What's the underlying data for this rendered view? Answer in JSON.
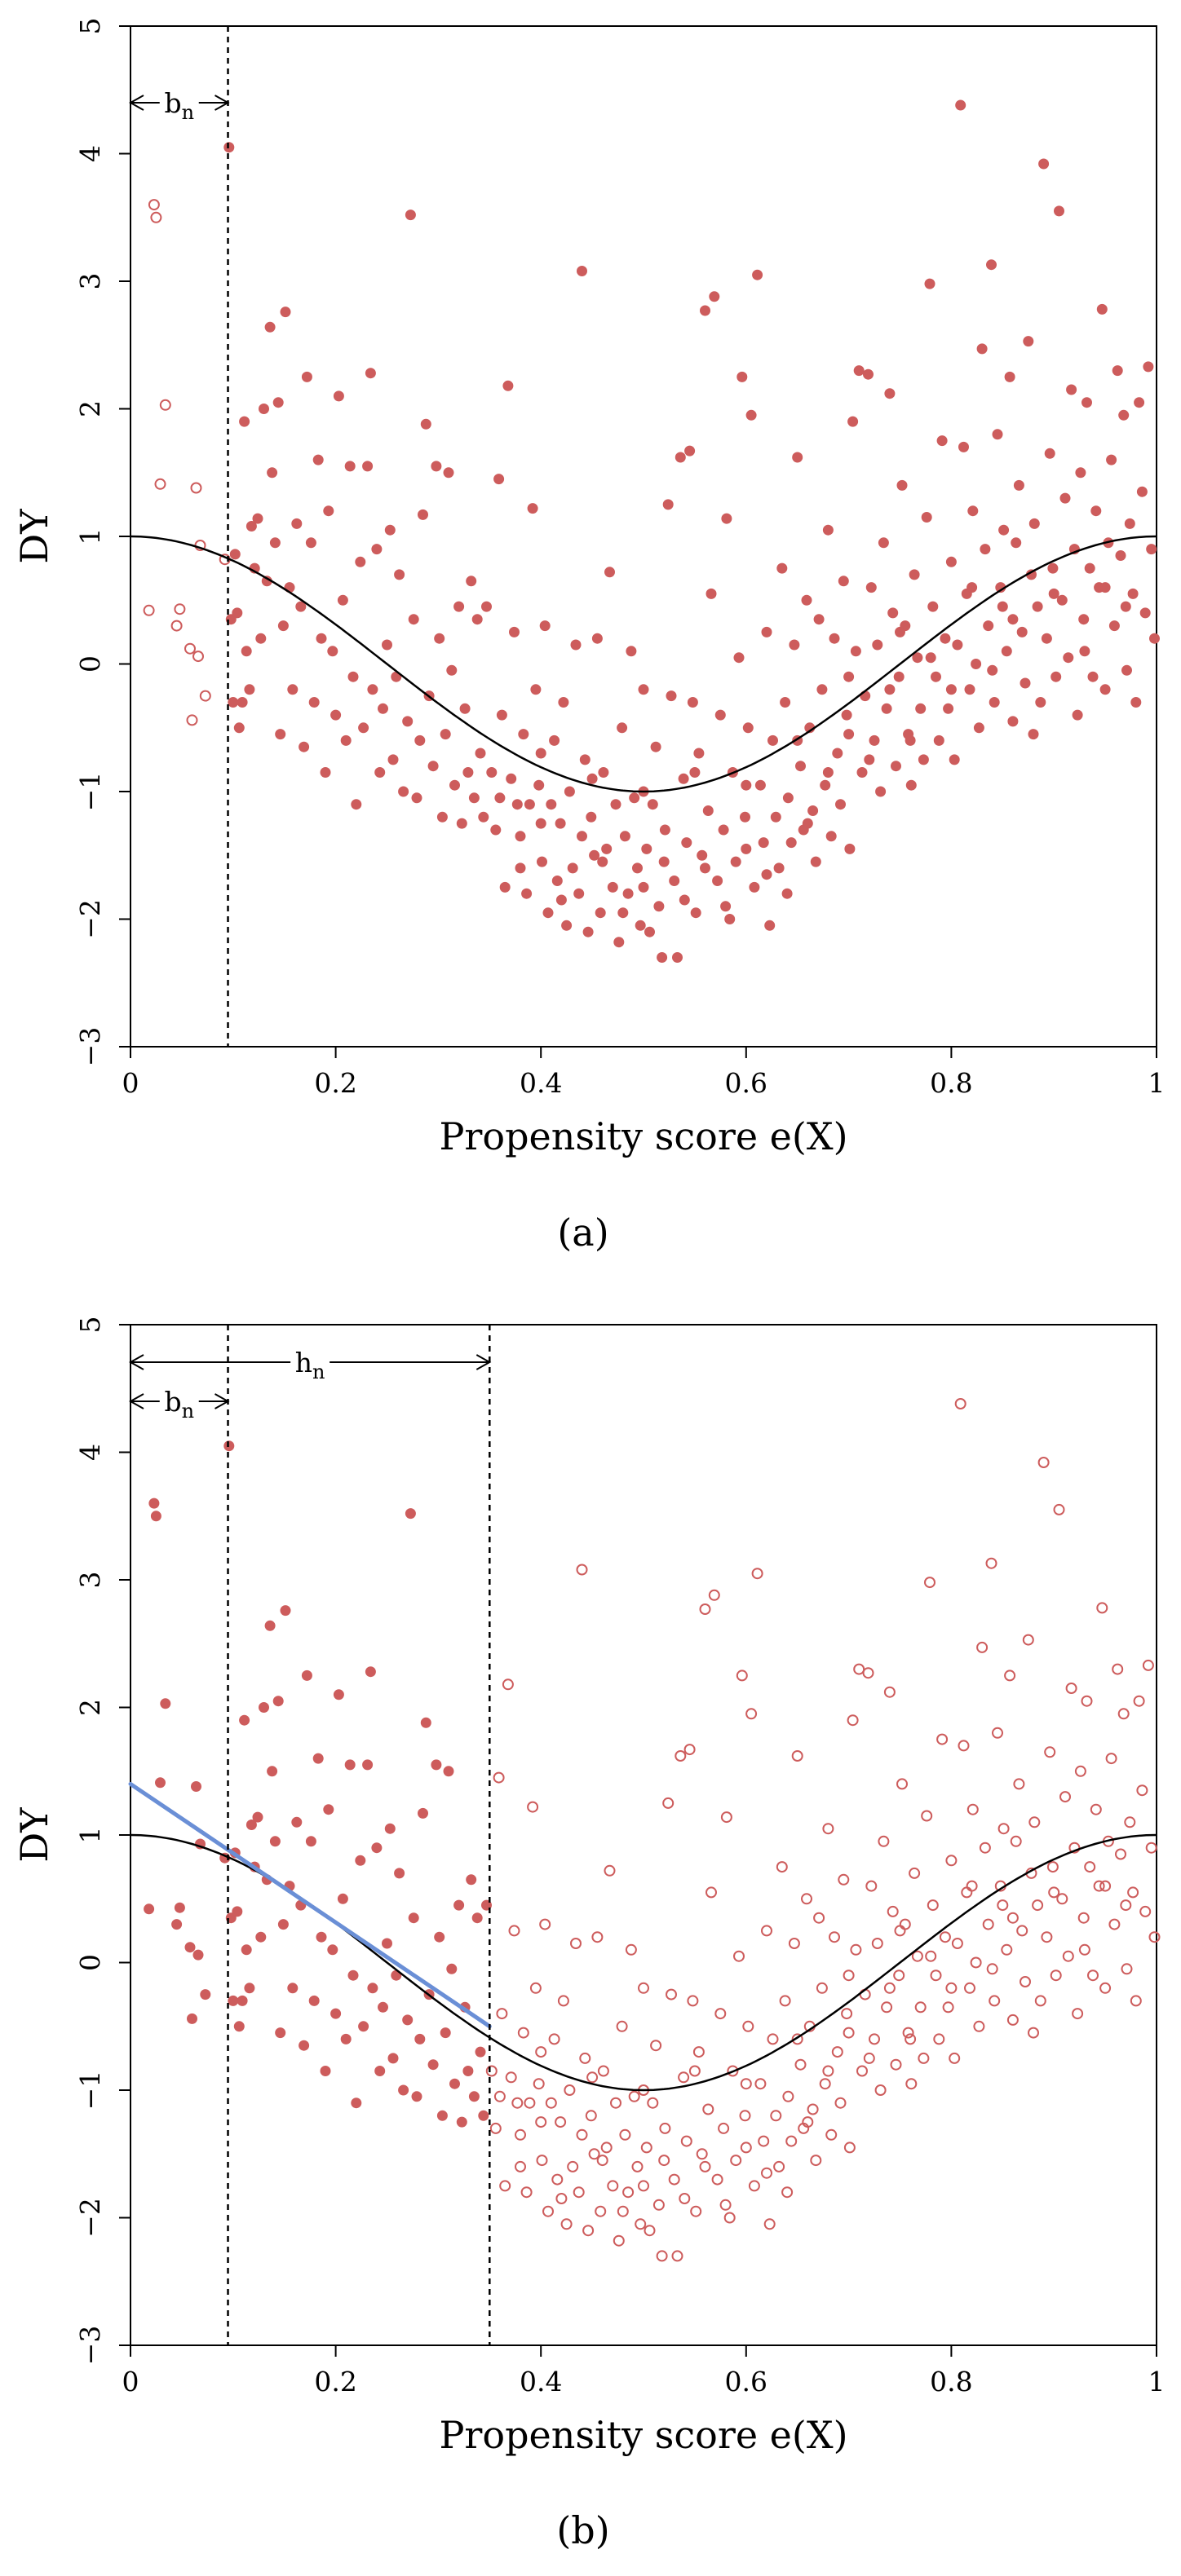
{
  "shared": {
    "xlabel": "Propensity score e(X)",
    "ylabel": "DY",
    "xticks": [
      "0",
      "0.2",
      "0.4",
      "0.6",
      "0.8",
      "1"
    ],
    "yticks": [
      "−3",
      "−2",
      "−1",
      "0",
      "1",
      "2",
      "3",
      "4",
      "5"
    ],
    "xlim": [
      0,
      1
    ],
    "ylim": [
      -3,
      5
    ],
    "curve": "cos(2πx)",
    "point_color": "#CD5C5C",
    "fit_color": "#6A8FD6"
  },
  "chart_data": [
    {
      "type": "scatter",
      "caption": "(a)",
      "bandwidth_label": "b",
      "bandwidth_sub": "n",
      "b_n": 0.095,
      "note": "points with e(X) < b_n shown hollow, others filled"
    },
    {
      "type": "scatter",
      "caption": "(b)",
      "bandwidth_label": "b",
      "bandwidth_sub": "n",
      "h_label": "h",
      "h_sub": "n",
      "b_n": 0.095,
      "h_n": 0.35,
      "local_fit": {
        "x0": 0,
        "y0": 1.4,
        "x1": 0.35,
        "y1": -0.5
      },
      "note": "points with e(X) <= h_n shown filled, others hollow"
    }
  ],
  "points": [
    [
      0.018,
      0.42
    ],
    [
      0.023,
      3.6
    ],
    [
      0.025,
      3.5
    ],
    [
      0.029,
      1.41
    ],
    [
      0.034,
      2.03
    ],
    [
      0.045,
      0.3
    ],
    [
      0.048,
      0.43
    ],
    [
      0.058,
      0.12
    ],
    [
      0.06,
      -0.44
    ],
    [
      0.064,
      1.38
    ],
    [
      0.066,
      0.06
    ],
    [
      0.068,
      0.93
    ],
    [
      0.073,
      -0.25
    ],
    [
      0.092,
      0.82
    ],
    [
      0.096,
      4.05
    ],
    [
      0.098,
      0.35
    ],
    [
      0.1,
      -0.3
    ],
    [
      0.102,
      0.86
    ],
    [
      0.104,
      0.4
    ],
    [
      0.106,
      -0.5
    ],
    [
      0.109,
      -0.3
    ],
    [
      0.111,
      1.9
    ],
    [
      0.113,
      0.1
    ],
    [
      0.116,
      -0.2
    ],
    [
      0.118,
      1.08
    ],
    [
      0.121,
      0.75
    ],
    [
      0.124,
      1.14
    ],
    [
      0.127,
      0.2
    ],
    [
      0.13,
      2.0
    ],
    [
      0.133,
      0.65
    ],
    [
      0.136,
      2.64
    ],
    [
      0.138,
      1.5
    ],
    [
      0.141,
      0.95
    ],
    [
      0.144,
      2.05
    ],
    [
      0.146,
      -0.55
    ],
    [
      0.149,
      0.3
    ],
    [
      0.151,
      2.76
    ],
    [
      0.155,
      0.6
    ],
    [
      0.158,
      -0.2
    ],
    [
      0.162,
      1.1
    ],
    [
      0.166,
      0.45
    ],
    [
      0.169,
      -0.65
    ],
    [
      0.172,
      2.25
    ],
    [
      0.176,
      0.95
    ],
    [
      0.179,
      -0.3
    ],
    [
      0.183,
      1.6
    ],
    [
      0.186,
      0.2
    ],
    [
      0.19,
      -0.85
    ],
    [
      0.193,
      1.2
    ],
    [
      0.197,
      0.1
    ],
    [
      0.2,
      -0.4
    ],
    [
      0.203,
      2.1
    ],
    [
      0.207,
      0.5
    ],
    [
      0.21,
      -0.6
    ],
    [
      0.214,
      1.55
    ],
    [
      0.217,
      -0.1
    ],
    [
      0.22,
      -1.1
    ],
    [
      0.224,
      0.8
    ],
    [
      0.227,
      -0.5
    ],
    [
      0.231,
      1.55
    ],
    [
      0.234,
      2.28
    ],
    [
      0.236,
      -0.2
    ],
    [
      0.24,
      0.9
    ],
    [
      0.243,
      -0.85
    ],
    [
      0.246,
      -0.35
    ],
    [
      0.25,
      0.15
    ],
    [
      0.253,
      1.05
    ],
    [
      0.256,
      -0.75
    ],
    [
      0.259,
      -0.1
    ],
    [
      0.262,
      0.7
    ],
    [
      0.266,
      -1.0
    ],
    [
      0.27,
      -0.45
    ],
    [
      0.273,
      3.52
    ],
    [
      0.276,
      0.35
    ],
    [
      0.279,
      -1.05
    ],
    [
      0.282,
      -0.6
    ],
    [
      0.285,
      1.17
    ],
    [
      0.288,
      1.88
    ],
    [
      0.291,
      -0.25
    ],
    [
      0.295,
      -0.8
    ],
    [
      0.298,
      1.55
    ],
    [
      0.301,
      0.2
    ],
    [
      0.304,
      -1.2
    ],
    [
      0.307,
      -0.55
    ],
    [
      0.31,
      1.5
    ],
    [
      0.313,
      -0.05
    ],
    [
      0.316,
      -0.95
    ],
    [
      0.32,
      0.45
    ],
    [
      0.323,
      -1.25
    ],
    [
      0.326,
      -0.35
    ],
    [
      0.329,
      -0.85
    ],
    [
      0.332,
      0.65
    ],
    [
      0.335,
      -1.05
    ],
    [
      0.338,
      0.35
    ],
    [
      0.341,
      -0.7
    ],
    [
      0.344,
      -1.2
    ],
    [
      0.347,
      0.45
    ],
    [
      0.352,
      -0.85
    ],
    [
      0.356,
      -1.3
    ],
    [
      0.359,
      1.45
    ],
    [
      0.362,
      -0.4
    ],
    [
      0.365,
      -1.75
    ],
    [
      0.368,
      2.18
    ],
    [
      0.371,
      -0.9
    ],
    [
      0.374,
      0.25
    ],
    [
      0.377,
      -1.1
    ],
    [
      0.38,
      -1.35
    ],
    [
      0.383,
      -0.55
    ],
    [
      0.386,
      -1.8
    ],
    [
      0.389,
      -1.1
    ],
    [
      0.392,
      1.22
    ],
    [
      0.395,
      -0.2
    ],
    [
      0.398,
      -0.95
    ],
    [
      0.401,
      -1.55
    ],
    [
      0.404,
      0.3
    ],
    [
      0.407,
      -1.95
    ],
    [
      0.41,
      -1.1
    ],
    [
      0.413,
      -0.6
    ],
    [
      0.416,
      -1.7
    ],
    [
      0.419,
      -1.25
    ],
    [
      0.422,
      -0.3
    ],
    [
      0.425,
      -2.05
    ],
    [
      0.428,
      -1.0
    ],
    [
      0.431,
      -1.6
    ],
    [
      0.434,
      0.15
    ],
    [
      0.437,
      -1.8
    ],
    [
      0.44,
      3.08
    ],
    [
      0.443,
      -0.75
    ],
    [
      0.446,
      -2.1
    ],
    [
      0.449,
      -1.2
    ],
    [
      0.452,
      -1.5
    ],
    [
      0.455,
      0.2
    ],
    [
      0.458,
      -1.95
    ],
    [
      0.461,
      -0.85
    ],
    [
      0.464,
      -1.45
    ],
    [
      0.467,
      0.72
    ],
    [
      0.47,
      -1.75
    ],
    [
      0.473,
      -1.1
    ],
    [
      0.476,
      -2.18
    ],
    [
      0.479,
      -0.5
    ],
    [
      0.482,
      -1.35
    ],
    [
      0.485,
      -1.8
    ],
    [
      0.488,
      0.1
    ],
    [
      0.491,
      -1.05
    ],
    [
      0.494,
      -1.6
    ],
    [
      0.497,
      -2.05
    ],
    [
      0.5,
      -0.2
    ],
    [
      0.503,
      -1.45
    ],
    [
      0.506,
      -2.1
    ],
    [
      0.509,
      -1.1
    ],
    [
      0.512,
      -0.65
    ],
    [
      0.515,
      -1.9
    ],
    [
      0.518,
      -2.3
    ],
    [
      0.521,
      -1.3
    ],
    [
      0.524,
      1.25
    ],
    [
      0.527,
      -0.25
    ],
    [
      0.53,
      -1.7
    ],
    [
      0.533,
      -2.3
    ],
    [
      0.536,
      1.62
    ],
    [
      0.539,
      -0.9
    ],
    [
      0.542,
      -1.4
    ],
    [
      0.545,
      1.67
    ],
    [
      0.548,
      -0.3
    ],
    [
      0.551,
      -1.95
    ],
    [
      0.554,
      -0.7
    ],
    [
      0.557,
      -1.5
    ],
    [
      0.56,
      2.77
    ],
    [
      0.563,
      -1.15
    ],
    [
      0.566,
      0.55
    ],
    [
      0.569,
      2.88
    ],
    [
      0.572,
      -1.7
    ],
    [
      0.575,
      -0.4
    ],
    [
      0.578,
      -1.3
    ],
    [
      0.581,
      1.14
    ],
    [
      0.584,
      -2.0
    ],
    [
      0.587,
      -0.85
    ],
    [
      0.59,
      -1.55
    ],
    [
      0.593,
      0.05
    ],
    [
      0.596,
      2.25
    ],
    [
      0.599,
      -1.2
    ],
    [
      0.602,
      -0.5
    ],
    [
      0.605,
      1.95
    ],
    [
      0.608,
      -1.75
    ],
    [
      0.611,
      3.05
    ],
    [
      0.614,
      -0.95
    ],
    [
      0.617,
      -1.4
    ],
    [
      0.62,
      0.25
    ],
    [
      0.623,
      -2.05
    ],
    [
      0.626,
      -0.6
    ],
    [
      0.629,
      -1.2
    ],
    [
      0.632,
      -1.6
    ],
    [
      0.635,
      0.75
    ],
    [
      0.638,
      -0.3
    ],
    [
      0.641,
      -1.05
    ],
    [
      0.644,
      -1.4
    ],
    [
      0.647,
      0.15
    ],
    [
      0.65,
      1.62
    ],
    [
      0.653,
      -0.8
    ],
    [
      0.656,
      -1.3
    ],
    [
      0.659,
      0.5
    ],
    [
      0.662,
      -0.5
    ],
    [
      0.665,
      -1.15
    ],
    [
      0.668,
      -1.55
    ],
    [
      0.671,
      0.35
    ],
    [
      0.674,
      -0.2
    ],
    [
      0.677,
      -0.95
    ],
    [
      0.68,
      1.05
    ],
    [
      0.683,
      -1.35
    ],
    [
      0.686,
      0.2
    ],
    [
      0.689,
      -0.7
    ],
    [
      0.692,
      -1.1
    ],
    [
      0.695,
      0.65
    ],
    [
      0.698,
      -0.4
    ],
    [
      0.701,
      -1.45
    ],
    [
      0.704,
      1.9
    ],
    [
      0.707,
      0.1
    ],
    [
      0.71,
      2.3
    ],
    [
      0.713,
      -0.85
    ],
    [
      0.716,
      -0.25
    ],
    [
      0.719,
      2.27
    ],
    [
      0.722,
      0.6
    ],
    [
      0.725,
      -0.6
    ],
    [
      0.728,
      0.15
    ],
    [
      0.731,
      -1.0
    ],
    [
      0.734,
      0.95
    ],
    [
      0.737,
      -0.35
    ],
    [
      0.74,
      2.12
    ],
    [
      0.743,
      0.4
    ],
    [
      0.746,
      -0.8
    ],
    [
      0.749,
      -0.1
    ],
    [
      0.752,
      1.4
    ],
    [
      0.755,
      0.3
    ],
    [
      0.758,
      -0.55
    ],
    [
      0.761,
      -0.95
    ],
    [
      0.764,
      0.7
    ],
    [
      0.767,
      0.05
    ],
    [
      0.77,
      -0.35
    ],
    [
      0.773,
      -0.75
    ],
    [
      0.776,
      1.15
    ],
    [
      0.779,
      2.98
    ],
    [
      0.782,
      0.45
    ],
    [
      0.785,
      -0.1
    ],
    [
      0.788,
      -0.6
    ],
    [
      0.791,
      1.75
    ],
    [
      0.794,
      0.2
    ],
    [
      0.797,
      -0.35
    ],
    [
      0.8,
      0.8
    ],
    [
      0.803,
      -0.75
    ],
    [
      0.806,
      0.15
    ],
    [
      0.809,
      4.38
    ],
    [
      0.812,
      1.7
    ],
    [
      0.815,
      0.55
    ],
    [
      0.818,
      -0.2
    ],
    [
      0.821,
      1.2
    ],
    [
      0.824,
      0.0
    ],
    [
      0.827,
      -0.5
    ],
    [
      0.83,
      2.47
    ],
    [
      0.833,
      0.9
    ],
    [
      0.836,
      0.3
    ],
    [
      0.839,
      3.13
    ],
    [
      0.842,
      -0.3
    ],
    [
      0.845,
      1.8
    ],
    [
      0.848,
      0.6
    ],
    [
      0.851,
      1.05
    ],
    [
      0.854,
      0.1
    ],
    [
      0.857,
      2.25
    ],
    [
      0.86,
      -0.45
    ],
    [
      0.863,
      0.95
    ],
    [
      0.866,
      1.4
    ],
    [
      0.869,
      0.25
    ],
    [
      0.872,
      -0.15
    ],
    [
      0.875,
      2.53
    ],
    [
      0.878,
      0.7
    ],
    [
      0.881,
      1.1
    ],
    [
      0.884,
      0.45
    ],
    [
      0.887,
      -0.3
    ],
    [
      0.89,
      3.92
    ],
    [
      0.893,
      0.2
    ],
    [
      0.896,
      1.65
    ],
    [
      0.899,
      0.75
    ],
    [
      0.902,
      -0.1
    ],
    [
      0.905,
      3.55
    ],
    [
      0.908,
      0.5
    ],
    [
      0.911,
      1.3
    ],
    [
      0.914,
      0.05
    ],
    [
      0.917,
      2.15
    ],
    [
      0.92,
      0.9
    ],
    [
      0.923,
      -0.4
    ],
    [
      0.926,
      1.5
    ],
    [
      0.929,
      0.35
    ],
    [
      0.932,
      2.05
    ],
    [
      0.935,
      0.75
    ],
    [
      0.938,
      -0.1
    ],
    [
      0.941,
      1.2
    ],
    [
      0.944,
      0.6
    ],
    [
      0.947,
      2.78
    ],
    [
      0.95,
      -0.2
    ],
    [
      0.953,
      0.95
    ],
    [
      0.956,
      1.6
    ],
    [
      0.959,
      0.3
    ],
    [
      0.962,
      2.3
    ],
    [
      0.965,
      0.85
    ],
    [
      0.968,
      1.95
    ],
    [
      0.971,
      -0.05
    ],
    [
      0.974,
      1.1
    ],
    [
      0.977,
      0.55
    ],
    [
      0.98,
      -0.3
    ],
    [
      0.983,
      2.05
    ],
    [
      0.986,
      1.35
    ],
    [
      0.989,
      0.4
    ],
    [
      0.992,
      2.33
    ],
    [
      0.995,
      0.9
    ],
    [
      0.998,
      0.2
    ],
    [
      0.97,
      0.45
    ],
    [
      0.93,
      0.1
    ],
    [
      0.88,
      -0.55
    ],
    [
      0.86,
      0.35
    ],
    [
      0.84,
      -0.05
    ],
    [
      0.82,
      0.6
    ],
    [
      0.8,
      -0.2
    ],
    [
      0.78,
      0.05
    ],
    [
      0.76,
      -0.6
    ],
    [
      0.74,
      -0.2
    ],
    [
      0.72,
      -0.75
    ],
    [
      0.7,
      -0.55
    ],
    [
      0.68,
      -0.85
    ],
    [
      0.66,
      -1.25
    ],
    [
      0.64,
      -1.8
    ],
    [
      0.62,
      -1.65
    ],
    [
      0.6,
      -1.45
    ],
    [
      0.58,
      -1.9
    ],
    [
      0.56,
      -1.6
    ],
    [
      0.54,
      -1.85
    ],
    [
      0.52,
      -1.55
    ],
    [
      0.5,
      -1.75
    ],
    [
      0.48,
      -1.95
    ],
    [
      0.46,
      -1.55
    ],
    [
      0.44,
      -1.35
    ],
    [
      0.42,
      -1.85
    ],
    [
      0.4,
      -1.25
    ],
    [
      0.38,
      -1.6
    ],
    [
      0.36,
      -1.05
    ],
    [
      0.5,
      -1.0
    ],
    [
      0.55,
      -0.85
    ],
    [
      0.45,
      -0.9
    ],
    [
      0.65,
      -0.6
    ],
    [
      0.7,
      -0.1
    ],
    [
      0.75,
      0.25
    ],
    [
      0.85,
      0.45
    ],
    [
      0.9,
      0.55
    ],
    [
      0.95,
      0.6
    ],
    [
      0.6,
      -0.95
    ],
    [
      0.4,
      -0.7
    ]
  ]
}
